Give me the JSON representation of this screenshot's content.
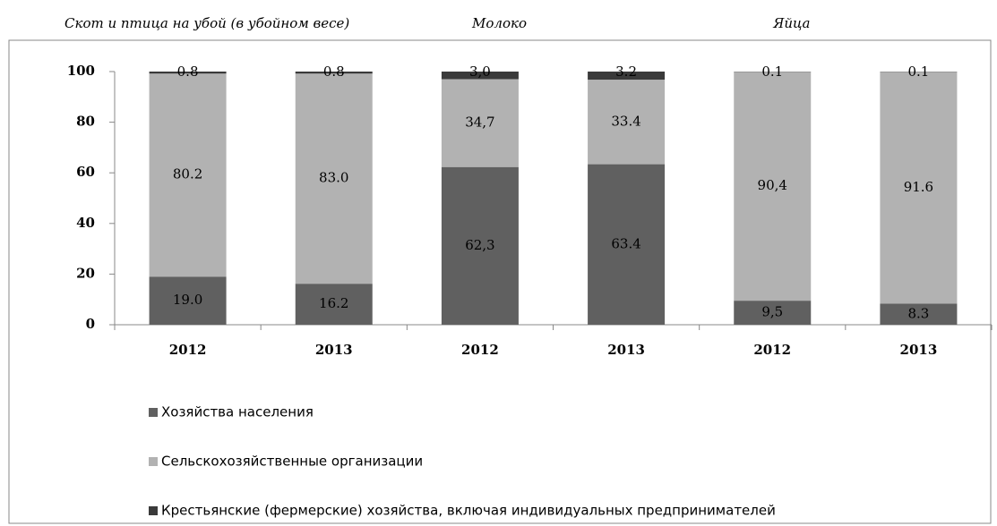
{
  "chart_data": {
    "type": "bar",
    "stacked": true,
    "group_labels": [
      "Скот и птица на убой (в убойном весе)",
      "Молоко",
      "Яйца"
    ],
    "categories": [
      "2012",
      "2013",
      "2012",
      "2013",
      "2012",
      "2013"
    ],
    "series": [
      {
        "name": "Хозяйства населения",
        "color": "#606060",
        "values": [
          19.0,
          16.2,
          62.3,
          63.4,
          9.5,
          8.3
        ],
        "value_labels": [
          "19.0",
          "16.2",
          "62,3",
          "63.4",
          "9,5",
          "8.3"
        ]
      },
      {
        "name": "Сельскохозяйственные организации",
        "color": "#b2b2b2",
        "values": [
          80.2,
          83.0,
          34.7,
          33.4,
          90.4,
          91.6
        ],
        "value_labels": [
          "80.2",
          "83.0",
          "34,7",
          "33.4",
          "90,4",
          "91.6"
        ]
      },
      {
        "name": "Крестьянские (фермерские) хозяйства, включая индивидуальных предпринимателей",
        "color": "#3a3a3a",
        "values": [
          0.8,
          0.8,
          3.0,
          3.2,
          0.1,
          0.1
        ],
        "value_labels": [
          "0.8",
          "0.8",
          "3,0",
          "3.2",
          "0.1",
          "0.1"
        ]
      }
    ],
    "ylim": [
      0,
      100
    ],
    "yticks": [
      0,
      20,
      40,
      60,
      80,
      100
    ],
    "legend": "bottom"
  }
}
